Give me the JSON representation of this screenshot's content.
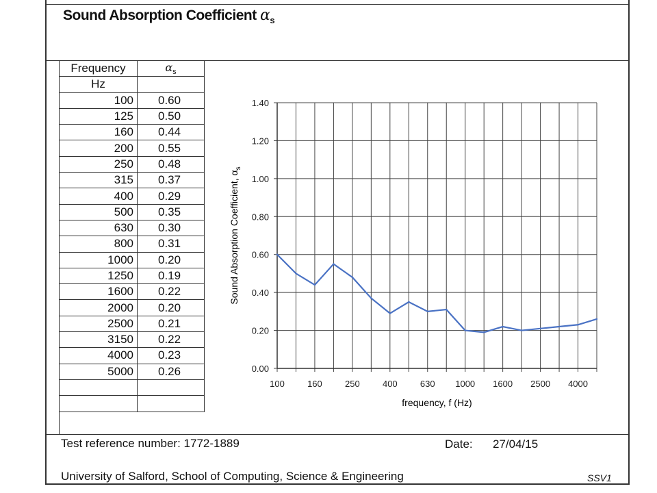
{
  "header": {
    "title": "Sound Absorption Coefficient",
    "symbol": "α",
    "symbol_sub": "s"
  },
  "table": {
    "col1_header": "Frequency",
    "col1_unit": "Hz",
    "col2_symbol": "α",
    "col2_sub": "s",
    "rows": [
      {
        "f": "100",
        "a": "0.60"
      },
      {
        "f": "125",
        "a": "0.50"
      },
      {
        "f": "160",
        "a": "0.44"
      },
      {
        "f": "200",
        "a": "0.55"
      },
      {
        "f": "250",
        "a": "0.48"
      },
      {
        "f": "315",
        "a": "0.37"
      },
      {
        "f": "400",
        "a": "0.29"
      },
      {
        "f": "500",
        "a": "0.35"
      },
      {
        "f": "630",
        "a": "0.30"
      },
      {
        "f": "800",
        "a": "0.31"
      },
      {
        "f": "1000",
        "a": "0.20"
      },
      {
        "f": "1250",
        "a": "0.19"
      },
      {
        "f": "1600",
        "a": "0.22"
      },
      {
        "f": "2000",
        "a": "0.20"
      },
      {
        "f": "2500",
        "a": "0.21"
      },
      {
        "f": "3150",
        "a": "0.22"
      },
      {
        "f": "4000",
        "a": "0.23"
      },
      {
        "f": "5000",
        "a": "0.26"
      }
    ]
  },
  "chart_data": {
    "type": "line",
    "x": [
      "100",
      "125",
      "160",
      "200",
      "250",
      "315",
      "400",
      "500",
      "630",
      "800",
      "1000",
      "1250",
      "1600",
      "2000",
      "2500",
      "3150",
      "4000",
      "5000"
    ],
    "series": [
      {
        "values": [
          0.6,
          0.5,
          0.44,
          0.55,
          0.48,
          0.37,
          0.29,
          0.35,
          0.3,
          0.31,
          0.2,
          0.19,
          0.22,
          0.2,
          0.21,
          0.22,
          0.23,
          0.26
        ]
      }
    ],
    "xlabel": "frequency, f (Hz)",
    "ylabel": "Sound Absorption Coefficient, α",
    "ylabel_sub": "s",
    "ylim": [
      0,
      1.4
    ],
    "yticks": [
      "0.00",
      "0.20",
      "0.40",
      "0.60",
      "0.80",
      "1.00",
      "1.20",
      "1.40"
    ],
    "xtick_labels": [
      "100",
      "160",
      "250",
      "400",
      "630",
      "1000",
      "1600",
      "2500",
      "4000"
    ],
    "grid": true,
    "line_color": "#4a72c4"
  },
  "footer": {
    "test_ref_label": "Test reference number: 1772-1889",
    "date_label": "Date:",
    "date_value": "27/04/15",
    "institution": "University of Salford, School of Computing, Science & Engineering",
    "code": "SSV1"
  }
}
